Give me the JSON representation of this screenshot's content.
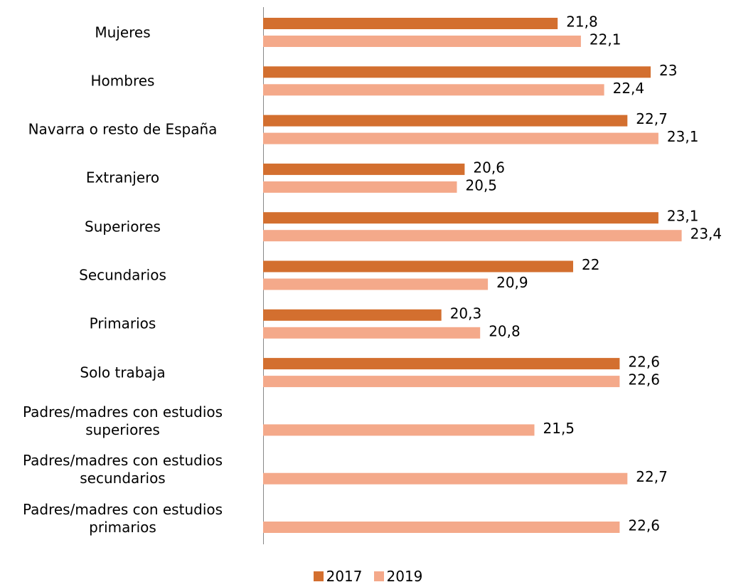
{
  "chart_data": {
    "type": "bar",
    "orientation": "horizontal",
    "categories": [
      "Mujeres",
      "Hombres",
      "Navarra o resto de España",
      "Extranjero",
      "Superiores",
      "Secundarios",
      "Primarios",
      "Solo trabaja",
      "Padres/madres con estudios superiores",
      "Padres/madres con estudios secundarios",
      "Padres/madres con estudios primarios"
    ],
    "series": [
      {
        "name": "2017",
        "color": "#d36f2f",
        "values": [
          21.8,
          23,
          22.7,
          20.6,
          23.1,
          22,
          20.3,
          22.6,
          null,
          null,
          null
        ],
        "value_labels": [
          "21,8",
          "23",
          "22,7",
          "20,6",
          "23,1",
          "22",
          "20,3",
          "22,6",
          null,
          null,
          null
        ]
      },
      {
        "name": "2019",
        "color": "#f4a98a",
        "values": [
          22.1,
          22.4,
          23.1,
          20.5,
          23.4,
          20.9,
          20.8,
          22.6,
          21.5,
          22.7,
          22.6
        ],
        "value_labels": [
          "22,1",
          "22,4",
          "23,1",
          "20,5",
          "23,4",
          "20,9",
          "20,8",
          "22,6",
          "21,5",
          "22,7",
          "22,6"
        ]
      }
    ],
    "xlim": [
      18,
      24
    ],
    "legend": "bottom"
  }
}
